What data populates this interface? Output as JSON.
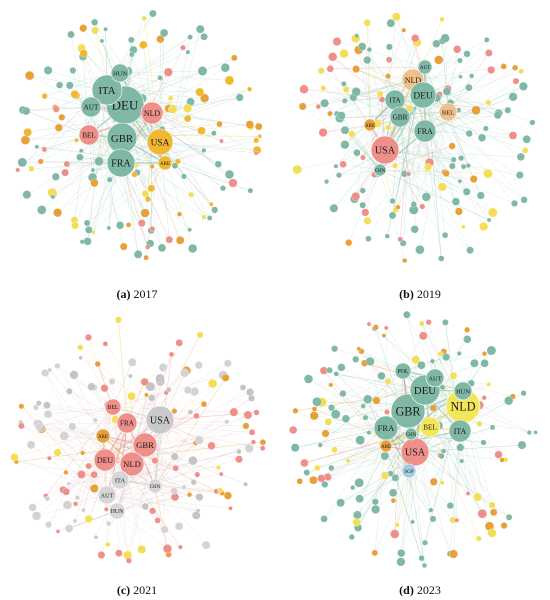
{
  "figure": {
    "panels": [
      {
        "letter": "(a)",
        "year": "2017",
        "seed": 17,
        "hubs": [
          {
            "label": "DEU",
            "color": "#7fb8a4",
            "r": 19
          },
          {
            "label": "ITA",
            "color": "#7fb8a4",
            "r": 15
          },
          {
            "label": "NLD",
            "color": "#ee8f8a",
            "r": 11
          },
          {
            "label": "GBR",
            "color": "#7fb8a4",
            "r": 15
          },
          {
            "label": "USA",
            "color": "#f2b730",
            "r": 13
          },
          {
            "label": "BEL",
            "color": "#ee8f8a",
            "r": 10
          },
          {
            "label": "FRA",
            "color": "#7fb8a4",
            "r": 14
          },
          {
            "label": "AUT",
            "color": "#7fb8a4",
            "r": 10
          },
          {
            "label": "HUN",
            "color": "#7fb8a4",
            "r": 9
          },
          {
            "label": "ARE",
            "color": "#f2b730",
            "r": 7
          }
        ],
        "palette": [
          "#7fb8a4",
          "#7fb8a4",
          "#7fb8a4",
          "#f2b730",
          "#e8a13a",
          "#ee8f8a",
          "#f3de55"
        ],
        "edge_color": "#b9d9cc"
      },
      {
        "letter": "(b)",
        "year": "2019",
        "seed": 19,
        "hubs": [
          {
            "label": "NLD",
            "color": "#f0c08a",
            "r": 11
          },
          {
            "label": "DEU",
            "color": "#7fb8a4",
            "r": 13
          },
          {
            "label": "ITA",
            "color": "#7fb8a4",
            "r": 10
          },
          {
            "label": "GBR",
            "color": "#7fb8a4",
            "r": 10
          },
          {
            "label": "BEL",
            "color": "#f0c08a",
            "r": 9
          },
          {
            "label": "FRA",
            "color": "#7fb8a4",
            "r": 11
          },
          {
            "label": "USA",
            "color": "#ee8f8a",
            "r": 14
          },
          {
            "label": "ARE",
            "color": "#e8a13a",
            "r": 6
          },
          {
            "label": "AUT",
            "color": "#7fb8a4",
            "r": 7
          },
          {
            "label": "CHN",
            "color": "#7fb8a4",
            "r": 6
          }
        ],
        "palette": [
          "#7fb8a4",
          "#7fb8a4",
          "#7fb8a4",
          "#7fb8a4",
          "#ee8f8a",
          "#f3de55",
          "#e8a13a"
        ],
        "edge_color": "#bfdcd1"
      },
      {
        "letter": "(c)",
        "year": "2021",
        "seed": 21,
        "hubs": [
          {
            "label": "USA",
            "color": "#c9c9c9",
            "r": 14
          },
          {
            "label": "FRA",
            "color": "#ee8f8a",
            "r": 10
          },
          {
            "label": "BEL",
            "color": "#ee8f8a",
            "r": 8
          },
          {
            "label": "GBR",
            "color": "#ee8f8a",
            "r": 12
          },
          {
            "label": "ARE",
            "color": "#e8a13a",
            "r": 7
          },
          {
            "label": "DEU",
            "color": "#ee8f8a",
            "r": 11
          },
          {
            "label": "NLD",
            "color": "#ee8f8a",
            "r": 12
          },
          {
            "label": "ITA",
            "color": "#d6d6d6",
            "r": 9
          },
          {
            "label": "AUT",
            "color": "#d6d6d6",
            "r": 9
          },
          {
            "label": "HUN",
            "color": "#d6d6d6",
            "r": 8
          },
          {
            "label": "CHN",
            "color": "#d6d6d6",
            "r": 7
          }
        ],
        "palette": [
          "#d3d3d3",
          "#d3d3d3",
          "#c4c4c4",
          "#ee8f8a",
          "#ee8f8a",
          "#e8a13a",
          "#f3de55"
        ],
        "edge_color": "#ead3d1"
      },
      {
        "letter": "(d)",
        "year": "2023",
        "seed": 23,
        "hubs": [
          {
            "label": "GBR",
            "color": "#7fb8a4",
            "r": 17
          },
          {
            "label": "DEU",
            "color": "#7fb8a4",
            "r": 15
          },
          {
            "label": "NLD",
            "color": "#f3e65a",
            "r": 17
          },
          {
            "label": "FRA",
            "color": "#7fb8a4",
            "r": 12
          },
          {
            "label": "BEL",
            "color": "#f3e65a",
            "r": 10
          },
          {
            "label": "USA",
            "color": "#ee8f8a",
            "r": 14
          },
          {
            "label": "ITA",
            "color": "#7fb8a4",
            "r": 11
          },
          {
            "label": "AUT",
            "color": "#7fb8a4",
            "r": 9
          },
          {
            "label": "HUN",
            "color": "#7fb8a4",
            "r": 9
          },
          {
            "label": "POL",
            "color": "#7fb8a4",
            "r": 8
          },
          {
            "label": "ARE",
            "color": "#e8a13a",
            "r": 6
          },
          {
            "label": "CHN",
            "color": "#7fb8a4",
            "r": 6
          },
          {
            "label": "SGP",
            "color": "#a6cbe0",
            "r": 7
          }
        ],
        "palette": [
          "#7fb8a4",
          "#7fb8a4",
          "#7fb8a4",
          "#7fb8a4",
          "#f3de55",
          "#e8a13a",
          "#ee8f8a"
        ],
        "edge_color": "#c3ddd4"
      }
    ]
  }
}
